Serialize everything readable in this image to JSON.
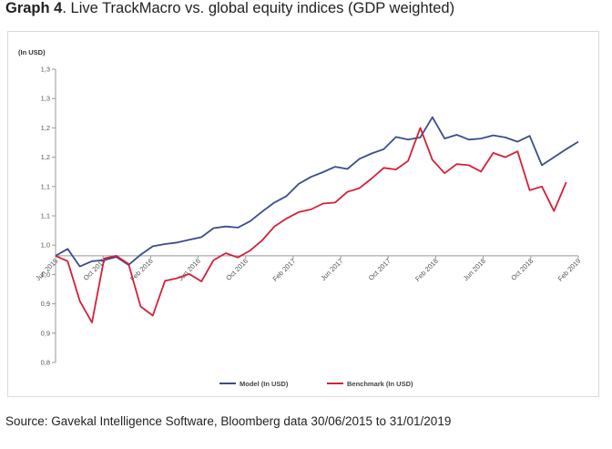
{
  "title": {
    "bold": "Graph 4",
    "rest": ". Live TrackMacro vs. global equity indices (GDP weighted)"
  },
  "source": "Source: Gavekal Intelligence Software, Bloomberg data 30/06/2015 to 31/01/2019",
  "chart_data": {
    "type": "line",
    "unit_label": "(In USD)",
    "y_ticks": [
      "1,3",
      "1,3",
      "1,2",
      "1,2",
      "1,1",
      "1,1",
      "1,0",
      "1,0",
      "0,9",
      "0,9",
      "0,8"
    ],
    "ylim": [
      0.8,
      1.35
    ],
    "x_ticks": [
      "Jun 2015",
      "Oct 2015",
      "Feb 2016",
      "Jun 2016",
      "Oct 2016",
      "Feb 2017",
      "Jun 2017",
      "Oct 2017",
      "Feb 2018",
      "Jun 2018",
      "Oct 2018",
      "Feb 2019"
    ],
    "grid": false,
    "legend_position": "bottom",
    "colors": {
      "model": "#3b4d8c",
      "benchmark": "#d4203a",
      "axis": "#999999"
    },
    "series": [
      {
        "name": "Model (In USD)",
        "x": [
          0,
          1,
          2,
          3,
          4,
          5,
          6,
          7,
          8,
          9,
          10,
          11,
          12,
          13,
          14,
          15,
          16,
          17,
          18,
          19,
          20,
          21,
          22,
          23,
          24,
          25,
          26,
          27,
          28,
          29,
          30,
          31,
          32,
          33,
          34,
          35,
          36,
          37,
          38,
          39,
          40,
          41,
          42,
          43
        ],
        "values": [
          1.0,
          1.013,
          0.98,
          0.99,
          0.992,
          0.998,
          0.983,
          1.002,
          1.018,
          1.022,
          1.025,
          1.03,
          1.035,
          1.052,
          1.055,
          1.053,
          1.065,
          1.083,
          1.1,
          1.112,
          1.135,
          1.148,
          1.157,
          1.167,
          1.163,
          1.182,
          1.192,
          1.2,
          1.223,
          1.218,
          1.222,
          1.26,
          1.22,
          1.227,
          1.218,
          1.22,
          1.226,
          1.222,
          1.214,
          1.225,
          1.17,
          1.185,
          1.2,
          1.214
        ]
      },
      {
        "name": "Benchmark (In USD)",
        "x": [
          0,
          1,
          2,
          3,
          4,
          5,
          6,
          7,
          8,
          9,
          10,
          11,
          12,
          13,
          14,
          15,
          16,
          17,
          18,
          19,
          20,
          21,
          22,
          23,
          24,
          25,
          26,
          27,
          28,
          29,
          30,
          31,
          32,
          33,
          34,
          35,
          36,
          37,
          38,
          39,
          40,
          41,
          42,
          43
        ],
        "values": [
          1.0,
          0.99,
          0.915,
          0.875,
          0.995,
          1.0,
          0.985,
          0.905,
          0.888,
          0.953,
          0.958,
          0.966,
          0.952,
          0.992,
          1.005,
          0.997,
          1.01,
          1.029,
          1.055,
          1.07,
          1.082,
          1.087,
          1.098,
          1.1,
          1.12,
          1.127,
          1.145,
          1.165,
          1.162,
          1.178,
          1.24,
          1.18,
          1.155,
          1.172,
          1.17,
          1.158,
          1.193,
          1.185,
          1.196,
          1.123,
          1.13,
          1.084,
          1.138,
          null
        ]
      }
    ]
  }
}
